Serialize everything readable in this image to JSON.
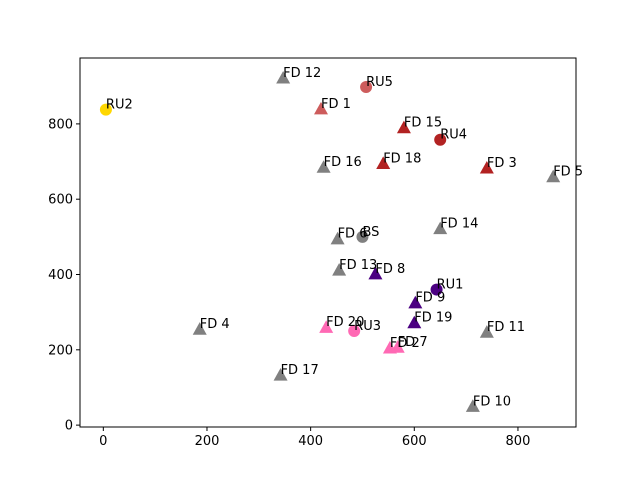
{
  "chart_data": {
    "type": "scatter",
    "xlim": [
      -45,
      912
    ],
    "ylim": [
      -5,
      975
    ],
    "x_ticks": [
      0,
      200,
      400,
      600,
      800
    ],
    "y_ticks": [
      0,
      200,
      400,
      600,
      800
    ],
    "grid": false,
    "legend": "none",
    "colors": {
      "gray": "#808080",
      "red": "#b22222",
      "indianred": "#cd5c5c",
      "indigo": "#4b0082",
      "hotpink": "#ff69b4",
      "gold": "#ffd700"
    },
    "points": [
      {
        "label": "BS",
        "x": 500,
        "y": 500,
        "marker": "circle",
        "color": "gray"
      },
      {
        "label": "RU1",
        "x": 643,
        "y": 360,
        "marker": "circle",
        "color": "indigo"
      },
      {
        "label": "RU2",
        "x": 5,
        "y": 838,
        "marker": "circle",
        "color": "gold"
      },
      {
        "label": "RU3",
        "x": 484,
        "y": 250,
        "marker": "circle",
        "color": "hotpink"
      },
      {
        "label": "RU4",
        "x": 650,
        "y": 758,
        "marker": "circle",
        "color": "red"
      },
      {
        "label": "RU5",
        "x": 507,
        "y": 898,
        "marker": "circle",
        "color": "indianred"
      },
      {
        "label": "FD 1",
        "x": 420,
        "y": 840,
        "marker": "triangle",
        "color": "indianred"
      },
      {
        "label": "FD 2",
        "x": 553,
        "y": 205,
        "marker": "triangle",
        "color": "hotpink"
      },
      {
        "label": "FD 3",
        "x": 740,
        "y": 683,
        "marker": "triangle",
        "color": "red"
      },
      {
        "label": "FD 4",
        "x": 186,
        "y": 255,
        "marker": "triangle",
        "color": "gray"
      },
      {
        "label": "FD 5",
        "x": 868,
        "y": 660,
        "marker": "triangle",
        "color": "gray"
      },
      {
        "label": "FD 6",
        "x": 452,
        "y": 495,
        "marker": "triangle",
        "color": "gray"
      },
      {
        "label": "FD 7",
        "x": 568,
        "y": 207,
        "marker": "triangle",
        "color": "hotpink"
      },
      {
        "label": "FD 8",
        "x": 525,
        "y": 402,
        "marker": "triangle",
        "color": "indigo"
      },
      {
        "label": "FD 9",
        "x": 602,
        "y": 325,
        "marker": "triangle",
        "color": "indigo"
      },
      {
        "label": "FD 10",
        "x": 713,
        "y": 50,
        "marker": "triangle",
        "color": "gray"
      },
      {
        "label": "FD 11",
        "x": 740,
        "y": 247,
        "marker": "triangle",
        "color": "gray"
      },
      {
        "label": "FD 12",
        "x": 347,
        "y": 922,
        "marker": "triangle",
        "color": "gray"
      },
      {
        "label": "FD 13",
        "x": 455,
        "y": 412,
        "marker": "triangle",
        "color": "gray"
      },
      {
        "label": "FD 14",
        "x": 650,
        "y": 522,
        "marker": "triangle",
        "color": "gray"
      },
      {
        "label": "FD 15",
        "x": 580,
        "y": 790,
        "marker": "triangle",
        "color": "red"
      },
      {
        "label": "FD 16",
        "x": 425,
        "y": 685,
        "marker": "triangle",
        "color": "gray"
      },
      {
        "label": "FD 17",
        "x": 342,
        "y": 133,
        "marker": "triangle",
        "color": "gray"
      },
      {
        "label": "FD 18",
        "x": 540,
        "y": 695,
        "marker": "triangle",
        "color": "red"
      },
      {
        "label": "FD 19",
        "x": 600,
        "y": 272,
        "marker": "triangle",
        "color": "indigo"
      },
      {
        "label": "FD 20",
        "x": 430,
        "y": 260,
        "marker": "triangle",
        "color": "hotpink"
      }
    ]
  }
}
